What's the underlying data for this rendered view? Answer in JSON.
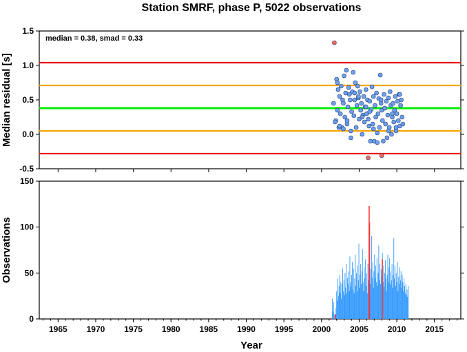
{
  "chart_data": [
    {
      "type": "scatter",
      "title": "Station SMRF, phase P, 5022 observations",
      "xlabel": "",
      "ylabel": "Median residual [s]",
      "xlim": [
        1962.5,
        2018.5
      ],
      "ylim": [
        -0.5,
        1.5
      ],
      "yticks": [
        "-0.5",
        "0.0",
        "0.5",
        "1.0",
        "1.5"
      ],
      "annotation": "median = 0.38, smad = 0.33",
      "colors": {
        "inlier": "#6fa0e8",
        "outlier": "#ff6a5a",
        "median": "#00ee00",
        "one_smad": "#f5a400",
        "three_smad": "#ee1111"
      },
      "reference_lines": [
        {
          "name": "median",
          "y": 0.38
        },
        {
          "name": "+1 smad",
          "y": 0.71
        },
        {
          "name": "-1 smad",
          "y": 0.05
        },
        {
          "name": "+2 smad",
          "y": 1.04
        },
        {
          "name": "-2 smad",
          "y": -0.28
        }
      ],
      "series": [
        {
          "x": [
            2001.6,
            2001.9,
            2002.0,
            2002.1,
            2002.2,
            2002.3,
            2002.4,
            2002.5,
            2002.6,
            2002.7,
            2002.8,
            2002.9,
            2003.0,
            2003.1,
            2003.2,
            2003.3,
            2003.4,
            2003.5,
            2003.6,
            2003.7,
            2003.8,
            2003.9,
            2004.0,
            2004.1,
            2004.2,
            2004.3,
            2004.4,
            2004.5,
            2004.6,
            2004.7,
            2004.8,
            2004.9,
            2005.0,
            2005.1,
            2005.2,
            2005.3,
            2005.4,
            2005.5,
            2005.6,
            2005.7,
            2005.8,
            2005.9,
            2006.0,
            2006.1,
            2006.2,
            2006.3,
            2006.4,
            2006.5,
            2006.6,
            2006.7,
            2006.8,
            2006.9,
            2007.0,
            2007.1,
            2007.2,
            2007.3,
            2007.4,
            2007.5,
            2007.6,
            2007.7,
            2007.8,
            2007.9,
            2008.0,
            2008.1,
            2008.2,
            2008.3,
            2008.4,
            2008.5,
            2008.6,
            2008.7,
            2008.8,
            2008.9,
            2009.0,
            2009.1,
            2009.2,
            2009.3,
            2009.4,
            2009.5,
            2009.6,
            2009.7,
            2009.8,
            2009.9,
            2010.0,
            2010.1,
            2010.2,
            2010.3,
            2010.4,
            2010.5,
            2010.6,
            2010.7,
            2010.8,
            2001.8,
            2002.1,
            2002.4,
            2002.9,
            2003.4,
            2003.9,
            2004.4,
            2004.9,
            2005.4,
            2005.9,
            2006.4,
            2006.9,
            2007.4,
            2007.9,
            2008.4,
            2008.9,
            2009.4,
            2009.9,
            2010.4
          ],
          "y": [
            0.45,
            0.2,
            0.8,
            0.35,
            0.65,
            0.1,
            0.55,
            0.3,
            0.7,
            0.1,
            0.5,
            0.45,
            0.85,
            0.25,
            0.6,
            0.93,
            0.15,
            0.4,
            0.68,
            0.58,
            0.5,
            0.05,
            0.33,
            0.62,
            0.9,
            0.27,
            0.5,
            0.75,
            0.1,
            0.42,
            0.7,
            0.53,
            0.22,
            0.62,
            0.35,
            0.45,
            0.0,
            0.28,
            0.55,
            0.18,
            0.4,
            0.65,
            0.3,
            0.5,
            0.22,
            0.12,
            0.48,
            -0.1,
            0.36,
            0.69,
            0.15,
            0.55,
            -0.1,
            0.42,
            0.25,
            0.6,
            0.02,
            0.3,
            0.52,
            0.1,
            0.86,
            0.45,
            0.35,
            0.2,
            -0.1,
            0.58,
            0.38,
            0.15,
            0.48,
            -0.05,
            0.28,
            0.53,
            0.1,
            0.62,
            0.42,
            0.0,
            0.25,
            0.45,
            0.18,
            0.35,
            0.55,
            0.05,
            0.3,
            0.48,
            0.2,
            0.58,
            0.12,
            0.42,
            0.5,
            0.25,
            0.15,
            0.18,
            0.75,
            0.12,
            0.08,
            0.2,
            -0.05,
            0.6,
            0.55,
            0.25,
            0.4,
            0.33,
            0.08,
            -0.12,
            0.5,
            0.38,
            0.05,
            0.3,
            0.1,
            0.58
          ]
        },
        {
          "x": [
            2001.7,
            2006.2,
            2008.0
          ],
          "y": [
            1.33,
            -0.34,
            -0.31
          ]
        }
      ]
    },
    {
      "type": "bar",
      "xlabel": "Year",
      "ylabel": "Observations",
      "xlim": [
        1962.5,
        2018.5
      ],
      "ylim": [
        0,
        150
      ],
      "xticks": [
        "1965",
        "1970",
        "1975",
        "1980",
        "1985",
        "1990",
        "1995",
        "2000",
        "2005",
        "2010",
        "2015"
      ],
      "yticks": [
        "0",
        "50",
        "100",
        "150"
      ],
      "colors": {
        "bars": "#3399ff",
        "highlight": "#ff3333"
      },
      "x_start": 2001.4,
      "x_step": 0.08,
      "values": [
        22,
        8,
        18,
        5,
        0,
        0,
        12,
        30,
        20,
        44,
        25,
        36,
        48,
        28,
        40,
        22,
        38,
        55,
        30,
        42,
        26,
        50,
        34,
        60,
        28,
        45,
        38,
        52,
        30,
        68,
        40,
        35,
        48,
        62,
        32,
        55,
        28,
        44,
        70,
        36,
        50,
        30,
        58,
        42,
        82,
        34,
        48,
        60,
        38,
        52,
        76,
        40,
        30,
        56,
        44,
        65,
        36,
        50,
        28,
        60,
        42,
        72,
        48,
        38,
        55,
        90,
        45,
        62,
        34,
        52,
        70,
        44,
        58,
        40,
        66,
        36,
        50,
        80,
        42,
        60,
        38,
        54,
        46,
        72,
        40,
        58,
        35,
        50,
        64,
        44,
        30,
        48,
        70,
        40,
        56,
        66,
        38,
        52,
        42,
        60,
        34,
        48,
        88,
        44,
        58,
        36,
        50,
        40,
        62,
        30,
        46,
        38,
        56,
        42,
        52,
        34,
        48,
        40,
        30,
        44,
        36,
        28,
        38,
        26,
        32,
        24,
        36
      ],
      "highlights": [
        {
          "x": 2001.75,
          "value": 5
        },
        {
          "x": 2006.25,
          "value": 123
        },
        {
          "x": 2006.3,
          "value": 105
        },
        {
          "x": 2008.0,
          "value": 65
        }
      ]
    }
  ]
}
